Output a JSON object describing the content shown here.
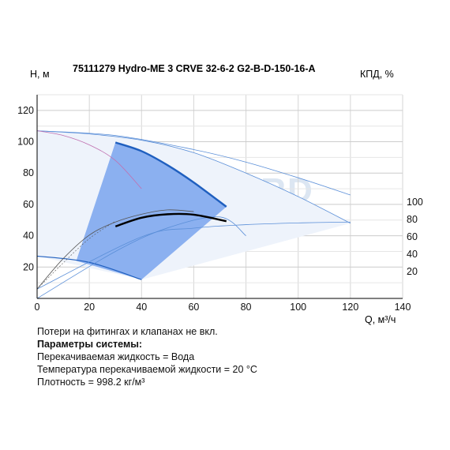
{
  "title": "75111279 Hydro-ME 3 CRVE 32-6-2 G2-B-D-150-16-A",
  "watermark": "VANDJORD",
  "colors": {
    "background": "#ffffff",
    "curve_blue": "#1f5fbf",
    "operating_area": "#7fa8ee",
    "outer_area": "#eef3fb",
    "efficiency": "#000000",
    "system_curve": "#5b8fd8",
    "magenta": "#c070b0",
    "watermark": "#dce6f2"
  },
  "notes": [
    {
      "text": "Потери на фитингах и клапанах не вкл.",
      "bold": false
    },
    {
      "text": "Параметры системы:",
      "bold": true
    },
    {
      "text": "Перекачиваемая жидкость = Вода",
      "bold": false
    },
    {
      "text": "Температура перекачиваемой жидкости = 20 °C",
      "bold": false
    },
    {
      "text": "Плотность = 998.2 кг/м³",
      "bold": false
    }
  ],
  "chart_data": {
    "type": "line",
    "title": "75111279 Hydro-ME 3 CRVE 32-6-2 G2-B-D-150-16-A",
    "xlabel": "Q, м³/ч",
    "ylabel": "H, м",
    "y2label": "КПД, %",
    "xlim": [
      0,
      140
    ],
    "ylim": [
      0,
      130
    ],
    "x_ticks": [
      0,
      20,
      40,
      60,
      80,
      100,
      120,
      140
    ],
    "y_ticks": [
      20,
      40,
      60,
      80,
      100,
      120
    ],
    "y2_ticks": [
      20,
      40,
      60,
      80,
      100
    ],
    "y2_scale": {
      "eff0_at_H": 6,
      "eff100_at_H": 61.5
    },
    "grid": true,
    "series": [
      {
        "key": "qh_operating",
        "x": [
          30,
          40,
          50,
          60,
          72.5
        ],
        "y": [
          99.5,
          94,
          85,
          74,
          58.5
        ]
      },
      {
        "key": "qh_max",
        "x": [
          0,
          20,
          40,
          60,
          80,
          100,
          120
        ],
        "y": [
          107,
          105,
          101,
          93,
          80,
          65,
          48
        ]
      },
      {
        "key": "qh_max_2",
        "x": [
          0,
          30,
          60,
          80,
          100,
          120
        ],
        "y": [
          107,
          104,
          95,
          87,
          77,
          66
        ]
      },
      {
        "key": "qh_min",
        "x": [
          0,
          20,
          40
        ],
        "y": [
          27,
          23,
          12
        ]
      },
      {
        "key": "eff_operating",
        "x": [
          30,
          40,
          50,
          60,
          72.5
        ],
        "y": [
          72,
          82,
          86,
          85.5,
          78
        ]
      },
      {
        "key": "eff_max",
        "x": [
          0,
          10,
          20,
          30,
          40,
          50,
          60
        ],
        "y": [
          0,
          35,
          62,
          77,
          86,
          91,
          89
        ]
      },
      {
        "key": "eff_lower",
        "x": [
          0,
          40,
          60,
          80,
          100,
          120
        ],
        "y": [
          0,
          60,
          70,
          74,
          76,
          77
        ]
      },
      {
        "key": "eff_low_speed",
        "x": [
          0,
          10,
          20,
          30
        ],
        "y": [
          0,
          30,
          58,
          78
        ]
      },
      {
        "key": "system_curve",
        "x": [
          0,
          30,
          50,
          70,
          80
        ],
        "y": [
          0,
          30,
          45,
          52,
          40
        ]
      },
      {
        "key": "magenta_line",
        "x": [
          0,
          10,
          20,
          30,
          40
        ],
        "y": [
          107,
          104,
          98,
          88,
          70
        ]
      }
    ],
    "operating_area": {
      "x": [
        30,
        72.5,
        40,
        15
      ],
      "y": [
        99.5,
        58.5,
        12,
        24
      ]
    }
  }
}
